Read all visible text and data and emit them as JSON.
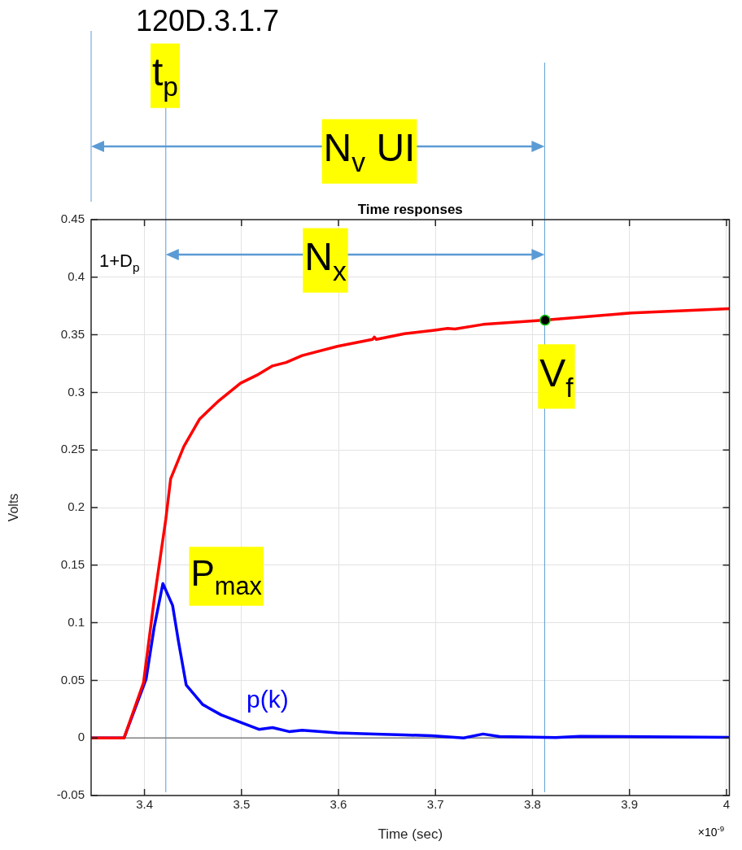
{
  "chart_data": {
    "type": "line",
    "title": "Time responses",
    "xlabel": "Time (sec)",
    "ylabel": "Volts",
    "xlim": [
      3.345,
      4.003
    ],
    "xticks": [
      3.4,
      3.5,
      3.6,
      3.7,
      3.8,
      3.9,
      4
    ],
    "ylim": [
      -0.05,
      0.45
    ],
    "yticks": [
      -0.05,
      0,
      0.05,
      0.1,
      0.15,
      0.2,
      0.25,
      0.3,
      0.35,
      0.4,
      0.45
    ],
    "grid": true,
    "legend": false,
    "marker": "none",
    "line_style": "solid",
    "series": [
      {
        "color": "#ff0000",
        "x": [
          3.345,
          3.379,
          3.399,
          3.41,
          3.422,
          3.427,
          3.4406,
          3.457,
          3.477,
          3.499,
          3.516,
          3.532,
          3.546,
          3.5625,
          3.599,
          3.635,
          3.637,
          3.639,
          3.668,
          3.699,
          3.7125,
          3.72,
          3.749,
          3.813,
          3.902,
          4.003
        ],
        "values": [
          0,
          0,
          0.048,
          0.12,
          0.19,
          0.225,
          0.253,
          0.277,
          0.293,
          0.308,
          0.315,
          0.323,
          0.326,
          0.332,
          0.34,
          0.346,
          0.348,
          0.346,
          0.351,
          0.354,
          0.3555,
          0.355,
          0.359,
          0.3627,
          0.369,
          0.3727
        ]
      },
      {
        "color": "#0000ff",
        "x": [
          3.345,
          3.379,
          3.4017,
          3.41,
          3.419,
          3.429,
          3.435,
          3.443,
          3.46,
          3.479,
          3.502,
          3.518,
          3.532,
          3.549,
          3.5625,
          3.599,
          3.638,
          3.668,
          3.696,
          3.729,
          3.749,
          3.766,
          3.824,
          3.849,
          4.003
        ],
        "values": [
          0,
          0,
          0.051,
          0.096,
          0.134,
          0.115,
          0.084,
          0.046,
          0.029,
          0.02,
          0.0126,
          0.0074,
          0.009,
          0.0055,
          0.0067,
          0.0043,
          0.0034,
          0.0026,
          0.0019,
          0,
          0.0034,
          0.0012,
          0.0003,
          0.0014,
          0.0005
        ]
      },
      {
        "type": "scatter",
        "marker": "circle",
        "color": "#000000",
        "x": [
          3.813
        ],
        "values": [
          0.3627
        ]
      }
    ],
    "ref_lines": [
      {
        "axis": "x",
        "value": 3.422,
        "color": "#5b9bd5"
      },
      {
        "axis": "x",
        "value": 3.8125,
        "color": "#5b9bd5"
      },
      {
        "axis": "y",
        "value": 0,
        "color": "#808080"
      }
    ],
    "annotations": [
      "120D.3.1.7",
      "t$_{p}$",
      "N$_{v}$ UI",
      "×10$^{-9}$",
      "1+D$_{p}$",
      "N$_{x}$",
      {
        "text": "V$_{f}$",
        "x": 3.813,
        "y": 0.3627
      },
      {
        "text": "P$_{max}$",
        "x": 3.419,
        "y": 0.134
      },
      {
        "text": "p(k)",
        "x": 3.5,
        "y": 0.0126
      }
    ]
  }
}
